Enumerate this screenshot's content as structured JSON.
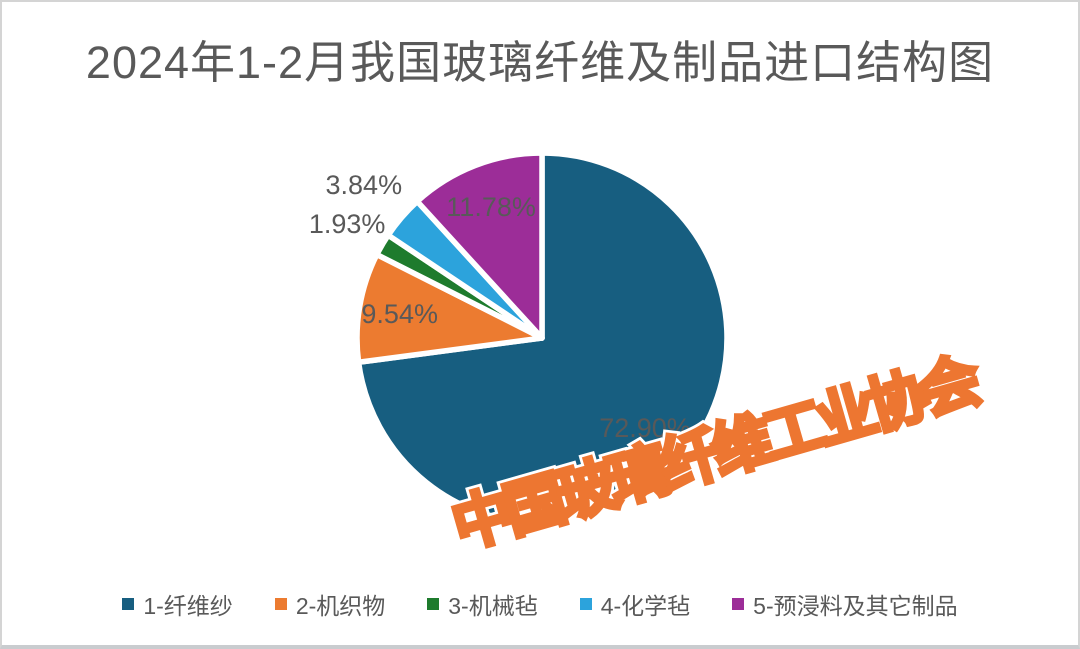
{
  "title": {
    "text": "2024年1-2月我国玻璃纤维及制品进口结构图",
    "color": "#595959"
  },
  "watermark": {
    "text": "中国玻璃纤维工业协会",
    "outline_color": "#ED7631",
    "fill_color": "#FCEFE3",
    "halo_color": "#FFFFFF"
  },
  "chart_data": {
    "type": "pie",
    "title": "2024年1-2月我国玻璃纤维及制品进口结构图",
    "start_angle_deg": 0,
    "direction": "clockwise",
    "slice_border_color": "#FFFFFF",
    "label_color": "#595959",
    "legend_position": "bottom",
    "slices": [
      {
        "label": "1-纤维纱",
        "value": 72.9,
        "display": "72.90%",
        "color": "#175E80",
        "label_placement": "inside",
        "label_radius_factor": 0.74
      },
      {
        "label": "2-机织物",
        "value": 9.54,
        "display": "9.54%",
        "color": "#EC7B30",
        "label_placement": "inside",
        "label_radius_factor": 0.78
      },
      {
        "label": "3-机械毡",
        "value": 1.93,
        "display": "1.93%",
        "color": "#1E7B2D",
        "label_placement": "outside",
        "label_radius_factor": 1.22
      },
      {
        "label": "4-化学毡",
        "value": 3.84,
        "display": "3.84%",
        "color": "#2CA3DC",
        "label_placement": "outside",
        "label_radius_factor": 1.27
      },
      {
        "label": "5-预浸料及其它制品",
        "value": 11.78,
        "display": "11.78%",
        "color": "#9C2D98",
        "label_placement": "inside",
        "label_radius_factor": 0.76
      }
    ]
  }
}
